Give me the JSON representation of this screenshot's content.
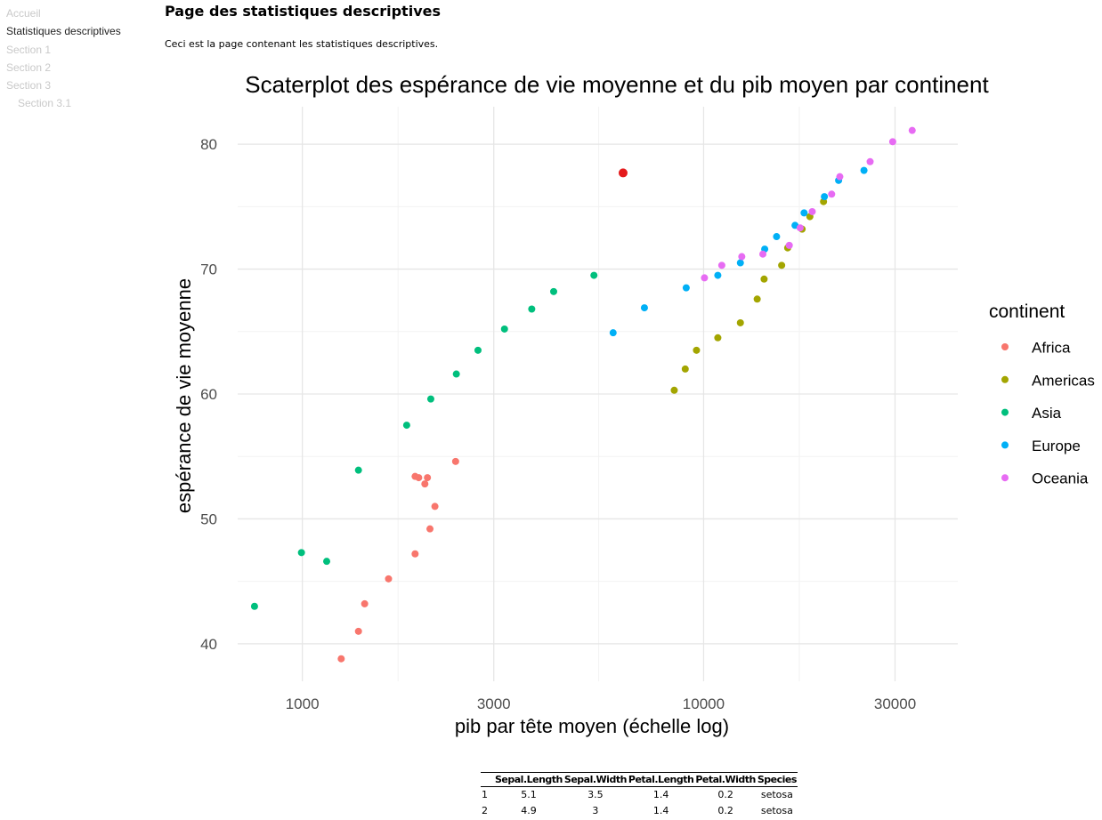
{
  "nav": {
    "items": [
      {
        "label": "Accueil",
        "active": false,
        "level": 0
      },
      {
        "label": "Statistiques descriptives",
        "active": true,
        "level": 0
      },
      {
        "label": "Section 1",
        "active": false,
        "level": 0
      },
      {
        "label": "Section 2",
        "active": false,
        "level": 0
      },
      {
        "label": "Section 3",
        "active": false,
        "level": 0
      },
      {
        "label": "Section 3.1",
        "active": false,
        "level": 1
      }
    ]
  },
  "page": {
    "title": "Page des statistiques descriptives",
    "intro": "Ceci est la page contenant les statistiques descriptives."
  },
  "chart_data": {
    "type": "scatter",
    "title": "Scaterplot des espérance de vie moyenne et du pib moyen par continent",
    "xlabel": "pib par tête moyen (échelle log)",
    "ylabel": "espérance de vie moyenne",
    "x_scale": "log10",
    "x_ticks": [
      1000,
      3000,
      10000,
      30000
    ],
    "x_tick_labels": [
      "1000",
      "3000",
      "10000",
      "30000"
    ],
    "y_ticks": [
      40,
      50,
      60,
      70,
      80
    ],
    "y_tick_labels": [
      "40",
      "50",
      "60",
      "70",
      "80"
    ],
    "xlim": [
      690,
      43000
    ],
    "ylim": [
      37,
      83
    ],
    "grid": true,
    "legend": {
      "title": "continent",
      "position": "right"
    },
    "series": [
      {
        "name": "Africa",
        "color": "#F8766D",
        "points": [
          [
            1250,
            38.8
          ],
          [
            1380,
            41.0
          ],
          [
            1430,
            43.2
          ],
          [
            1640,
            45.2
          ],
          [
            1910,
            47.2
          ],
          [
            2080,
            49.2
          ],
          [
            2140,
            51.0
          ],
          [
            2020,
            52.8
          ],
          [
            1910,
            53.4
          ],
          [
            1950,
            53.3
          ],
          [
            2050,
            53.3
          ],
          [
            2410,
            54.6
          ]
        ]
      },
      {
        "name": "Americas",
        "color": "#A3A500",
        "points": [
          [
            8450,
            60.3
          ],
          [
            9000,
            62.0
          ],
          [
            9600,
            63.5
          ],
          [
            10850,
            64.5
          ],
          [
            12350,
            65.7
          ],
          [
            13600,
            67.6
          ],
          [
            14150,
            69.2
          ],
          [
            15650,
            70.3
          ],
          [
            16200,
            71.7
          ],
          [
            17600,
            73.2
          ],
          [
            18400,
            74.2
          ],
          [
            19900,
            75.4
          ]
        ]
      },
      {
        "name": "Asia",
        "color": "#00BF7D",
        "points": [
          [
            760,
            43.0
          ],
          [
            995,
            47.3
          ],
          [
            1150,
            46.6
          ],
          [
            1380,
            53.9
          ],
          [
            1820,
            57.5
          ],
          [
            2090,
            59.6
          ],
          [
            2420,
            61.6
          ],
          [
            2740,
            63.5
          ],
          [
            3190,
            65.2
          ],
          [
            3730,
            66.8
          ],
          [
            4230,
            68.2
          ],
          [
            5330,
            69.5
          ]
        ]
      },
      {
        "name": "Europe",
        "color": "#00B0F6",
        "points": [
          [
            5950,
            64.9
          ],
          [
            7120,
            66.9
          ],
          [
            9050,
            68.5
          ],
          [
            10850,
            69.5
          ],
          [
            12350,
            70.5
          ],
          [
            14200,
            71.6
          ],
          [
            15200,
            72.6
          ],
          [
            16900,
            73.5
          ],
          [
            17800,
            74.5
          ],
          [
            20000,
            75.8
          ],
          [
            21700,
            77.1
          ],
          [
            25100,
            77.9
          ]
        ]
      },
      {
        "name": "Oceania",
        "color": "#E76BF3",
        "points": [
          [
            10050,
            69.3
          ],
          [
            11100,
            70.3
          ],
          [
            12450,
            71.0
          ],
          [
            14050,
            71.2
          ],
          [
            16350,
            71.9
          ],
          [
            17400,
            73.3
          ],
          [
            18650,
            74.6
          ],
          [
            20850,
            76.0
          ],
          [
            21850,
            77.4
          ],
          [
            26000,
            78.6
          ],
          [
            29600,
            80.2
          ],
          [
            33100,
            81.1
          ]
        ]
      },
      {
        "name": "",
        "color": "#E41A1C",
        "points": [
          [
            6300,
            77.7
          ]
        ]
      }
    ]
  },
  "iris_table": {
    "columns": [
      "",
      "Sepal.Length",
      "Sepal.Width",
      "Petal.Length",
      "Petal.Width",
      "Species"
    ],
    "rows": [
      [
        "1",
        "5.1",
        "3.5",
        "1.4",
        "0.2",
        "setosa"
      ],
      [
        "2",
        "4.9",
        "3",
        "1.4",
        "0.2",
        "setosa"
      ]
    ]
  }
}
